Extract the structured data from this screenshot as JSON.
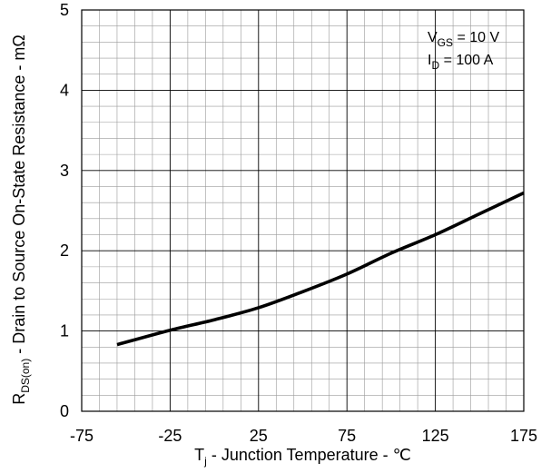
{
  "chart_data": {
    "type": "line",
    "title": "",
    "xlabel": {
      "main": "T",
      "sub": "j",
      "rest": " - Junction Temperature - ℃"
    },
    "ylabel": {
      "main": "R",
      "sub": "DS(on)",
      "rest": " - Drain to Source On-State Resistance - mΩ"
    },
    "xlim": [
      -75,
      175
    ],
    "ylim": [
      0,
      5
    ],
    "xticks": [
      -75,
      -25,
      25,
      75,
      125,
      175
    ],
    "yticks": [
      0,
      1,
      2,
      3,
      4,
      5
    ],
    "grid": {
      "major_x_step": 50,
      "minor_x_step": 10,
      "major_y_step": 1,
      "minor_y_step": 0.2
    },
    "annotations": [
      {
        "main": "V",
        "sub": "GS",
        "rest": " = 10 V"
      },
      {
        "main": "I",
        "sub": "D",
        "rest": " = 100 A"
      }
    ],
    "series": [
      {
        "name": "",
        "x": [
          -55,
          -25,
          0,
          25,
          50,
          75,
          100,
          125,
          150,
          175
        ],
        "y": [
          0.83,
          1.01,
          1.14,
          1.29,
          1.49,
          1.71,
          1.97,
          2.2,
          2.46,
          2.72
        ]
      }
    ]
  }
}
